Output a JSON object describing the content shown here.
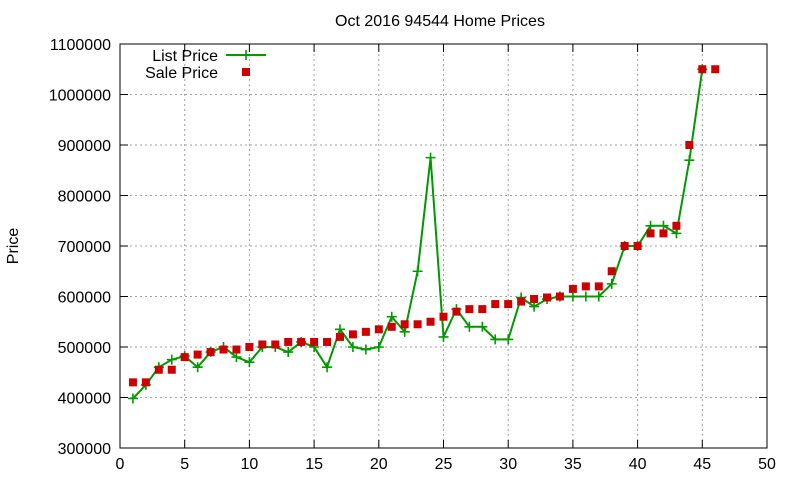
{
  "chart_data": {
    "type": "line",
    "title": "Oct 2016 94544 Home Prices",
    "xlabel": "",
    "ylabel": "Price",
    "xlim": [
      0,
      50
    ],
    "ylim": [
      300000,
      1100000
    ],
    "xticks": [
      0,
      5,
      10,
      15,
      20,
      25,
      30,
      35,
      40,
      45,
      50
    ],
    "yticks": [
      300000,
      400000,
      500000,
      600000,
      700000,
      800000,
      900000,
      1000000,
      1100000
    ],
    "grid": true,
    "legend_position": "top-left",
    "series": [
      {
        "name": "List Price",
        "style": "line+cross",
        "color": "#009900",
        "x": [
          1,
          2,
          3,
          4,
          5,
          6,
          7,
          8,
          9,
          10,
          11,
          12,
          13,
          14,
          15,
          16,
          17,
          18,
          19,
          20,
          21,
          22,
          23,
          24,
          25,
          26,
          27,
          28,
          29,
          30,
          31,
          32,
          33,
          34,
          35,
          36,
          37,
          38,
          39,
          40,
          41,
          42,
          43,
          44,
          45
        ],
        "y": [
          398000,
          425000,
          460000,
          475000,
          482000,
          460000,
          490000,
          500000,
          480000,
          470000,
          500000,
          500000,
          490000,
          510000,
          500000,
          460000,
          535000,
          500000,
          495000,
          500000,
          560000,
          530000,
          650000,
          875000,
          520000,
          575000,
          540000,
          540000,
          515000,
          515000,
          598000,
          580000,
          595000,
          600000,
          600000,
          600000,
          600000,
          625000,
          700000,
          700000,
          740000,
          740000,
          725000,
          870000,
          1050000
        ]
      },
      {
        "name": "Sale Price",
        "style": "square",
        "color": "#cc0000",
        "x": [
          1,
          2,
          3,
          4,
          5,
          6,
          7,
          8,
          9,
          10,
          11,
          12,
          13,
          14,
          15,
          16,
          17,
          18,
          19,
          20,
          21,
          22,
          23,
          24,
          25,
          26,
          27,
          28,
          29,
          30,
          31,
          32,
          33,
          34,
          35,
          36,
          37,
          38,
          39,
          40,
          41,
          42,
          43,
          44,
          45,
          46
        ],
        "y": [
          430000,
          430000,
          455000,
          455000,
          480000,
          485000,
          490000,
          495000,
          495000,
          500000,
          505000,
          505000,
          510000,
          510000,
          510000,
          510000,
          520000,
          525000,
          530000,
          535000,
          540000,
          545000,
          545000,
          550000,
          560000,
          570000,
          575000,
          575000,
          585000,
          585000,
          590000,
          595000,
          598000,
          600000,
          615000,
          620000,
          620000,
          650000,
          700000,
          700000,
          725000,
          725000,
          740000,
          900000,
          1050000,
          1050000
        ]
      }
    ]
  }
}
